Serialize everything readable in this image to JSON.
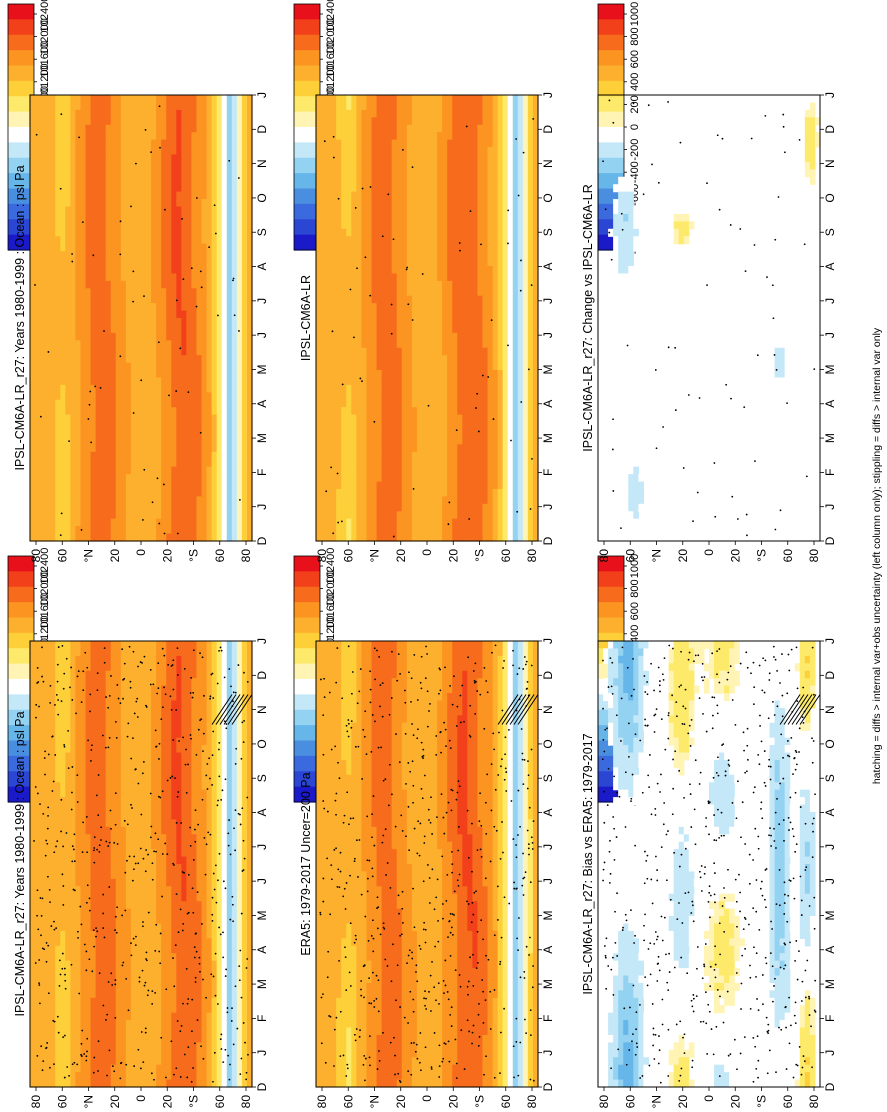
{
  "figure": {
    "footnote": "hatching = diffs > internal var+obs uncertainty (left column only); stippling = diffs > internal var only"
  },
  "chart_data": [
    {
      "type": "heatmap",
      "id": "model-left",
      "title": "IPSL-CM6A-LR_r27: Years 1980-1999 : Ocean : psl Pa",
      "x": [
        "D",
        "J",
        "F",
        "M",
        "A",
        "M",
        "J",
        "J",
        "A",
        "S",
        "O",
        "N",
        "D",
        "J"
      ],
      "y_ticks": [
        "80",
        "60",
        "°N",
        "20",
        "0",
        "20",
        "°S",
        "60",
        "80"
      ],
      "colorbar": {
        "ticks": [
          "102400",
          "102000",
          "101600",
          "101200",
          "100800",
          "100400",
          "100000",
          "99600",
          "99200",
          "98800",
          "98400"
        ]
      },
      "kind": "abs",
      "stipple_density": "dense",
      "hatch": true,
      "values_note": "zonal mean sea-level pressure (Pa), latitude vs month"
    },
    {
      "type": "heatmap",
      "id": "obs-left",
      "title": "ERA5: 1979-2017 Uncer=200 Pa",
      "x": [
        "D",
        "J",
        "F",
        "M",
        "A",
        "M",
        "J",
        "J",
        "A",
        "S",
        "O",
        "N",
        "D",
        "J"
      ],
      "y_ticks": [
        "80",
        "60",
        "°N",
        "20",
        "0",
        "20",
        "°S",
        "60",
        "80"
      ],
      "colorbar": {
        "ticks": [
          "102400",
          "102000",
          "101600",
          "101200",
          "100800",
          "100400",
          "100000",
          "99600",
          "99200",
          "98800",
          "98400"
        ]
      },
      "kind": "abs",
      "stipple_density": "dense",
      "hatch": true
    },
    {
      "type": "heatmap",
      "id": "bias-left",
      "title": "IPSL-CM6A-LR_r27: Bias vs ERA5: 1979-2017",
      "x": [
        "D",
        "J",
        "F",
        "M",
        "A",
        "M",
        "J",
        "J",
        "A",
        "S",
        "O",
        "N",
        "D",
        "J"
      ],
      "y_ticks": [
        "80",
        "60",
        "°N",
        "20",
        "0",
        "20",
        "°S",
        "60",
        "80"
      ],
      "colorbar": {
        "ticks": [
          "1000",
          "800",
          "600",
          "400",
          "200",
          "0",
          "-200",
          "-400",
          "-600",
          "-800",
          "-1000"
        ]
      },
      "kind": "bias",
      "stipple_density": "dense",
      "hatch": true
    },
    {
      "type": "heatmap",
      "id": "model-right",
      "title": "IPSL-CM6A-LR_r27: Years 1980-1999 : Ocean : psl Pa",
      "x": [
        "D",
        "J",
        "F",
        "M",
        "A",
        "M",
        "J",
        "J",
        "A",
        "S",
        "O",
        "N",
        "D",
        "J"
      ],
      "y_ticks": [
        "80",
        "60",
        "°N",
        "20",
        "0",
        "20",
        "°S",
        "60",
        "80"
      ],
      "colorbar": {
        "ticks": [
          "102400",
          "102000",
          "101600",
          "101200",
          "100800",
          "100400",
          "100000",
          "99600",
          "99200",
          "98800",
          "98400"
        ]
      },
      "kind": "abs",
      "stipple_density": "sparse",
      "hatch": false
    },
    {
      "type": "heatmap",
      "id": "ref-right",
      "title": "IPSL-CM6A-LR",
      "x": [
        "D",
        "J",
        "F",
        "M",
        "A",
        "M",
        "J",
        "J",
        "A",
        "S",
        "O",
        "N",
        "D",
        "J"
      ],
      "y_ticks": [
        "80",
        "60",
        "°N",
        "20",
        "0",
        "20",
        "°S",
        "60",
        "80"
      ],
      "colorbar": {
        "ticks": [
          "102400",
          "102000",
          "101600",
          "101200",
          "100800",
          "100400",
          "100000",
          "99600",
          "99200",
          "98800",
          "98400"
        ]
      },
      "kind": "abs",
      "stipple_density": "sparse",
      "hatch": false
    },
    {
      "type": "heatmap",
      "id": "change-right",
      "title": "IPSL-CM6A-LR_r27: Change vs IPSL-CM6A-LR",
      "x": [
        "D",
        "J",
        "F",
        "M",
        "A",
        "M",
        "J",
        "J",
        "A",
        "S",
        "O",
        "N",
        "D",
        "J"
      ],
      "y_ticks": [
        "80",
        "60",
        "°N",
        "20",
        "0",
        "20",
        "°S",
        "60",
        "80"
      ],
      "colorbar": {
        "ticks": [
          "1000",
          "800",
          "600",
          "400",
          "200",
          "0",
          "-200",
          "-400",
          "-600",
          "-800",
          "-1000"
        ]
      },
      "kind": "change",
      "stipple_density": "sparse",
      "hatch": false
    }
  ]
}
